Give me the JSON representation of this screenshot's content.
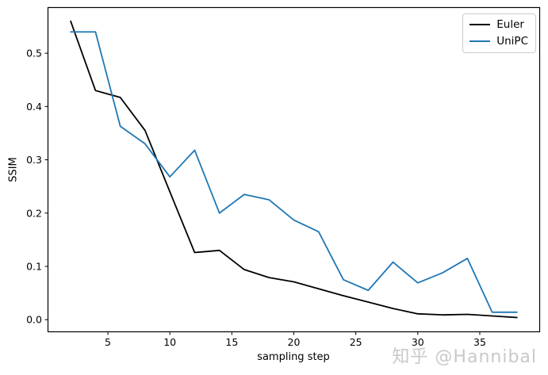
{
  "chart_data": {
    "type": "line",
    "title": "",
    "xlabel": "sampling step",
    "ylabel": "SSIM",
    "x": [
      2,
      4,
      6,
      8,
      10,
      12,
      14,
      16,
      18,
      20,
      22,
      24,
      26,
      28,
      30,
      32,
      34,
      36,
      38
    ],
    "series": [
      {
        "name": "Euler",
        "color": "#000000",
        "values": [
          0.56,
          0.43,
          0.417,
          0.355,
          0.24,
          0.126,
          0.13,
          0.094,
          0.079,
          0.071,
          0.058,
          0.045,
          0.033,
          0.021,
          0.011,
          0.009,
          0.01,
          0.007,
          0.004
        ]
      },
      {
        "name": "UniPC",
        "color": "#1f77b4",
        "values": [
          0.54,
          0.54,
          0.363,
          0.33,
          0.268,
          0.318,
          0.2,
          0.235,
          0.225,
          0.187,
          0.165,
          0.075,
          0.055,
          0.108,
          0.069,
          0.088,
          0.115,
          0.014,
          0.014
        ]
      }
    ],
    "xlim": [
      0.2,
      39.8
    ],
    "ylim": [
      -0.022,
      0.585
    ],
    "xticks": [
      5,
      10,
      15,
      20,
      25,
      30,
      35
    ],
    "yticks": [
      0.0,
      0.1,
      0.2,
      0.3,
      0.4,
      0.5
    ],
    "grid": false,
    "legend_position": "upper right"
  },
  "watermark": {
    "text": "知乎 @Hannibal",
    "color": "#c9c9c9"
  }
}
